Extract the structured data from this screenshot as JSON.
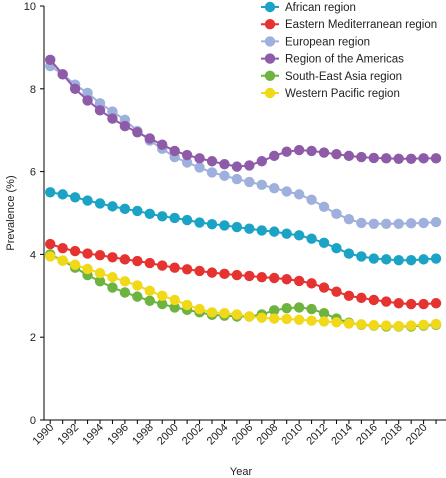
{
  "chart_data": {
    "type": "line",
    "title": "",
    "xlabel": "Year",
    "ylabel": "Prevalence (%)",
    "ylim": [
      0,
      10
    ],
    "yticks": [
      0,
      2,
      4,
      6,
      8,
      10
    ],
    "xticks": [
      1990,
      1992,
      1994,
      1996,
      1998,
      2000,
      2002,
      2004,
      2006,
      2008,
      2010,
      2012,
      2014,
      2016,
      2018,
      2020
    ],
    "x": [
      1990,
      1991,
      1992,
      1993,
      1994,
      1995,
      1996,
      1997,
      1998,
      1999,
      2000,
      2001,
      2002,
      2003,
      2004,
      2005,
      2006,
      2007,
      2008,
      2009,
      2010,
      2011,
      2012,
      2013,
      2014,
      2015,
      2016,
      2017,
      2018,
      2019,
      2020,
      2021
    ],
    "grid": false,
    "legend_position": "top-right",
    "series": [
      {
        "name": "African region",
        "color": "#1ba3c6",
        "values": [
          5.5,
          5.45,
          5.38,
          5.3,
          5.23,
          5.16,
          5.1,
          5.05,
          4.98,
          4.92,
          4.88,
          4.83,
          4.77,
          4.73,
          4.7,
          4.66,
          4.62,
          4.58,
          4.55,
          4.5,
          4.46,
          4.38,
          4.28,
          4.15,
          4.02,
          3.95,
          3.9,
          3.88,
          3.86,
          3.86,
          3.88,
          3.9
        ]
      },
      {
        "name": "Eastern Mediterranean region",
        "color": "#e53331",
        "values": [
          4.25,
          4.15,
          4.08,
          4.02,
          3.98,
          3.93,
          3.88,
          3.84,
          3.79,
          3.73,
          3.68,
          3.64,
          3.6,
          3.56,
          3.53,
          3.5,
          3.48,
          3.45,
          3.43,
          3.4,
          3.36,
          3.3,
          3.2,
          3.1,
          3.0,
          2.95,
          2.9,
          2.86,
          2.82,
          2.8,
          2.8,
          2.82
        ]
      },
      {
        "name": "European region",
        "color": "#9fb0dc",
        "values": [
          8.55,
          8.35,
          8.1,
          7.9,
          7.65,
          7.45,
          7.25,
          6.98,
          6.75,
          6.55,
          6.35,
          6.22,
          6.1,
          5.98,
          5.9,
          5.82,
          5.75,
          5.68,
          5.6,
          5.52,
          5.45,
          5.32,
          5.15,
          4.98,
          4.85,
          4.76,
          4.74,
          4.74,
          4.74,
          4.75,
          4.76,
          4.78
        ]
      },
      {
        "name": "Region of the Americas",
        "color": "#8e5ba8",
        "values": [
          8.7,
          8.35,
          8.0,
          7.72,
          7.48,
          7.28,
          7.1,
          6.95,
          6.8,
          6.65,
          6.5,
          6.4,
          6.32,
          6.25,
          6.18,
          6.12,
          6.15,
          6.25,
          6.38,
          6.48,
          6.52,
          6.5,
          6.46,
          6.42,
          6.38,
          6.35,
          6.33,
          6.32,
          6.31,
          6.31,
          6.32,
          6.32
        ]
      },
      {
        "name": "South-East Asia region",
        "color": "#6db33f",
        "values": [
          4.0,
          3.85,
          3.68,
          3.5,
          3.35,
          3.2,
          3.08,
          2.98,
          2.88,
          2.8,
          2.72,
          2.66,
          2.6,
          2.54,
          2.52,
          2.5,
          2.5,
          2.55,
          2.65,
          2.7,
          2.72,
          2.68,
          2.58,
          2.45,
          2.35,
          2.3,
          2.28,
          2.26,
          2.26,
          2.26,
          2.28,
          2.3
        ]
      },
      {
        "name": "Western Pacific region",
        "color": "#f1d91a",
        "values": [
          3.95,
          3.85,
          3.75,
          3.65,
          3.55,
          3.45,
          3.35,
          3.25,
          3.12,
          3.0,
          2.9,
          2.78,
          2.68,
          2.6,
          2.58,
          2.55,
          2.5,
          2.47,
          2.45,
          2.44,
          2.42,
          2.4,
          2.38,
          2.36,
          2.33,
          2.31,
          2.29,
          2.28,
          2.27,
          2.28,
          2.3,
          2.32
        ]
      }
    ]
  }
}
